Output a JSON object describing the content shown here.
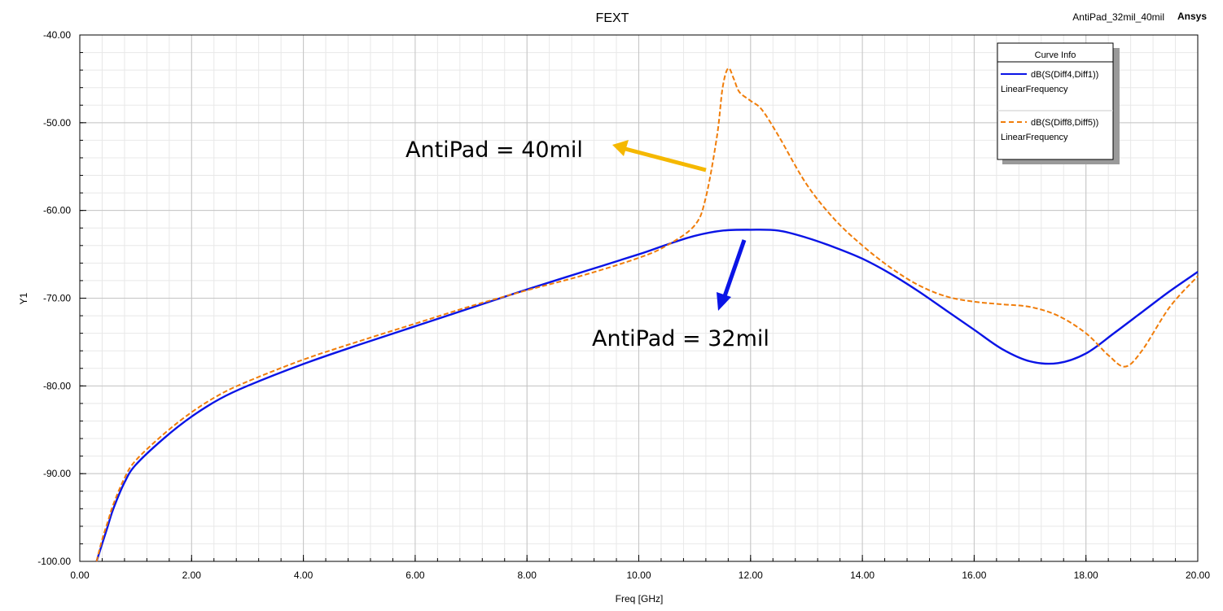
{
  "header": {
    "title": "FEXT",
    "design_tag": "AntiPad_32mil_40mil",
    "brand": "Ansys"
  },
  "chart_data": {
    "type": "line",
    "title": "FEXT",
    "xlabel": "Freq [GHz]",
    "ylabel": "Y1",
    "xlim": [
      0,
      20
    ],
    "ylim": [
      -100,
      -40
    ],
    "grid": true,
    "x_ticks": [
      "0.00",
      "2.00",
      "4.00",
      "6.00",
      "8.00",
      "10.00",
      "12.00",
      "14.00",
      "16.00",
      "18.00",
      "20.00"
    ],
    "y_ticks": [
      "-40.00",
      "-50.00",
      "-60.00",
      "-70.00",
      "-80.00",
      "-90.00",
      "-100.00"
    ],
    "legend": {
      "title": "Curve Info",
      "position": "top-right",
      "entries": [
        {
          "name": "dB(S(Diff4,Diff1))",
          "sub": "LinearFrequency",
          "color": "#0a14e6",
          "style": "solid"
        },
        {
          "name": "dB(S(Diff8,Diff5))",
          "sub": "LinearFrequency",
          "color": "#f07d0a",
          "style": "dashed"
        }
      ]
    },
    "series": [
      {
        "name": "dB(S(Diff4,Diff1))",
        "color": "#0a14e6",
        "dash": false,
        "x": [
          0.3,
          0.4,
          0.5,
          0.6,
          0.8,
          1.0,
          1.5,
          2.0,
          2.5,
          3.0,
          4.0,
          5.0,
          6.0,
          7.0,
          8.0,
          9.0,
          10.0,
          10.5,
          11.0,
          11.5,
          12.0,
          12.5,
          13.0,
          13.5,
          14.0,
          14.5,
          15.0,
          15.5,
          16.0,
          16.5,
          17.0,
          17.5,
          18.0,
          18.5,
          19.0,
          19.5,
          20.0
        ],
        "y": [
          -100.0,
          -98.0,
          -96.0,
          -94.0,
          -91.0,
          -89.0,
          -86.0,
          -83.5,
          -81.5,
          -80.0,
          -77.5,
          -75.3,
          -73.2,
          -71.1,
          -69.0,
          -67.0,
          -65.0,
          -63.9,
          -62.9,
          -62.3,
          -62.2,
          -62.3,
          -63.1,
          -64.2,
          -65.5,
          -67.2,
          -69.2,
          -71.4,
          -73.6,
          -75.8,
          -77.2,
          -77.4,
          -76.3,
          -74.0,
          -71.6,
          -69.2,
          -67.0
        ]
      },
      {
        "name": "dB(S(Diff8,Diff5))",
        "color": "#f07d0a",
        "dash": true,
        "x": [
          0.3,
          0.4,
          0.5,
          0.6,
          0.8,
          1.0,
          1.5,
          2.0,
          2.5,
          3.0,
          4.0,
          5.0,
          6.0,
          7.0,
          8.0,
          9.0,
          10.0,
          10.5,
          11.0,
          11.2,
          11.4,
          11.5,
          11.6,
          11.7,
          11.8,
          12.0,
          12.2,
          12.5,
          13.0,
          13.5,
          14.0,
          14.5,
          15.0,
          15.5,
          16.0,
          16.5,
          17.0,
          17.5,
          18.0,
          18.4,
          18.7,
          19.0,
          19.5,
          20.0
        ],
        "y": [
          -100.0,
          -97.5,
          -95.5,
          -93.5,
          -90.5,
          -88.5,
          -85.5,
          -83.0,
          -81.0,
          -79.5,
          -77.0,
          -74.9,
          -72.9,
          -70.9,
          -69.1,
          -67.4,
          -65.4,
          -64.0,
          -61.7,
          -58.5,
          -51.5,
          -46.0,
          -43.8,
          -45.0,
          -46.5,
          -47.5,
          -48.5,
          -51.5,
          -57.0,
          -61.0,
          -64.0,
          -66.5,
          -68.5,
          -69.8,
          -70.4,
          -70.7,
          -71.0,
          -72.0,
          -74.0,
          -76.5,
          -77.8,
          -76.0,
          -71.0,
          -67.5
        ]
      }
    ],
    "annotations": [
      {
        "text": "AntiPad = 40mil",
        "color": "#f5b800"
      },
      {
        "text": "AntiPad = 32mil",
        "color": "#0a14e6"
      }
    ]
  }
}
